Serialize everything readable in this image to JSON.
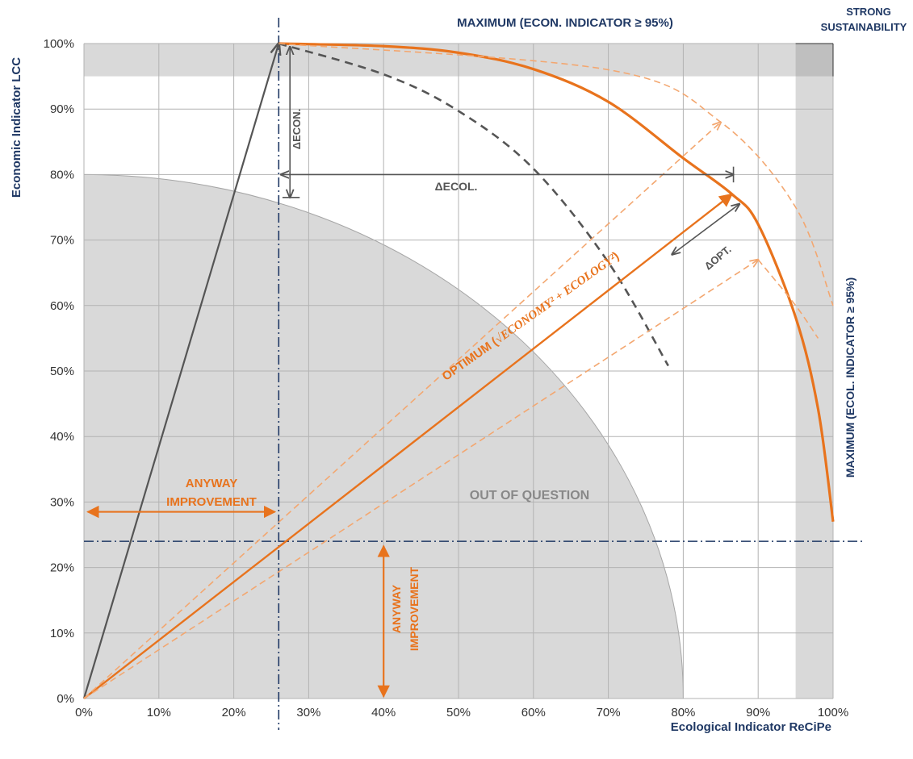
{
  "chart_data": {
    "type": "line",
    "xlabel": "Ecological Indicator ReCiPe",
    "ylabel": "Economic Indicator LCC",
    "xlim": [
      0,
      100
    ],
    "ylim": [
      0,
      100
    ],
    "grid": true,
    "x_ticks": [
      "0%",
      "10%",
      "20%",
      "30%",
      "40%",
      "50%",
      "60%",
      "70%",
      "80%",
      "90%",
      "100%"
    ],
    "y_ticks": [
      "0%",
      "10%",
      "20%",
      "30%",
      "40%",
      "50%",
      "60%",
      "70%",
      "80%",
      "90%",
      "100%"
    ],
    "thresholds": {
      "econ_min": 95,
      "ecol_min": 95,
      "anyway_x": 26,
      "anyway_y": 24
    },
    "out_of_question_radius": 80,
    "series": [
      {
        "values": [
          [
            0,
            0
          ],
          [
            26,
            100
          ]
        ]
      },
      {
        "values": [
          [
            26,
            100
          ],
          [
            40,
            99.6
          ],
          [
            50,
            98.6
          ],
          [
            60,
            96.1
          ],
          [
            70,
            91.1
          ],
          [
            80,
            82.5
          ],
          [
            86.5,
            77
          ],
          [
            90,
            72.4
          ],
          [
            95,
            58.2
          ],
          [
            98,
            44.2
          ],
          [
            100,
            27
          ]
        ]
      },
      {
        "values": [
          [
            26,
            100
          ],
          [
            40,
            95.3
          ],
          [
            50,
            89.7
          ],
          [
            60,
            80.9
          ],
          [
            70,
            66.6
          ],
          [
            78,
            50.8
          ]
        ]
      },
      {
        "values": [
          [
            0,
            0
          ],
          [
            86.5,
            77
          ]
        ]
      },
      {
        "values": [
          [
            0,
            0
          ],
          [
            85,
            88
          ]
        ]
      },
      {
        "values": [
          [
            0,
            0
          ],
          [
            90,
            67
          ]
        ]
      },
      {
        "values": [
          [
            26,
            100
          ],
          [
            70,
            96
          ],
          [
            85,
            88
          ],
          [
            95,
            75
          ],
          [
            100,
            60
          ]
        ]
      },
      {
        "values": [
          [
            90,
            67
          ],
          [
            95,
            60
          ],
          [
            98,
            55
          ]
        ]
      }
    ],
    "annotations": {
      "top_label": "MAXIMUM  (ECON. INDICATOR ≥ 95%)",
      "strong_1": "STRONG",
      "strong_2": "SUSTAINABILITY",
      "right_label": "MAXIMUM  (ECOL. INDICATOR ≥ 95%)",
      "d_econ": "ΔECON.",
      "d_ecol": "ΔECOL.",
      "d_opt": "ΔOPT.",
      "optimum_prefix": "OPTIMUM (",
      "optimum_formula": "√ECONOMY² + ECOLOGY²",
      "optimum_suffix": ")",
      "anyway_1": "ANYWAY",
      "anyway_2": "IMPROVEMENT",
      "out_of_question": "OUT OF QUESTION"
    }
  },
  "colors": {
    "navy": "#1f3864",
    "orange": "#e8731d",
    "light_orange": "#f3a770",
    "grey_fill": "#d9d9d9",
    "dark_grey": "#555555"
  }
}
